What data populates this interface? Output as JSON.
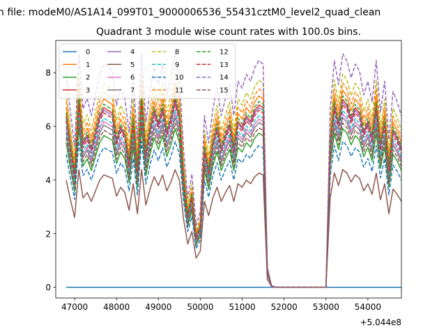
{
  "chart_data": {
    "type": "line",
    "suptitle": "n file: modeM0/AS1A14_099T01_9000006536_55431cztM0_level2_quad_clean",
    "title": "Quadrant 3 module wise count rates with 100.0s bins.",
    "xlabel": "",
    "ylabel": "",
    "x_offset_label": "+5.044e8",
    "xlim": [
      46550,
      54800
    ],
    "ylim": [
      -0.4,
      9.2
    ],
    "x_ticks": [
      47000,
      48000,
      49000,
      50000,
      51000,
      52000,
      53000,
      54000
    ],
    "x_tick_labels": [
      "47000",
      "48000",
      "49000",
      "50000",
      "51000",
      "52000",
      "53000",
      "54000"
    ],
    "y_ticks": [
      0,
      2,
      4,
      6,
      8
    ],
    "y_tick_labels": [
      "0",
      "2",
      "4",
      "6",
      "8"
    ],
    "grid": false,
    "legend_position": "upper-left",
    "legend_columns": 4,
    "x_start": 46800,
    "x_step": 100,
    "base_profile": [
      6.2,
      5.1,
      4.1,
      6.8,
      5.2,
      5.5,
      5.0,
      5.6,
      6.2,
      6.5,
      6.4,
      6.3,
      5.3,
      5.8,
      5.5,
      4.5,
      6.0,
      4.3,
      6.8,
      4.8,
      5.7,
      6.4,
      5.9,
      6.5,
      5.6,
      6.1,
      6.8,
      6.2,
      4.0,
      2.6,
      3.3,
      1.8,
      2.2,
      5.0,
      4.2,
      5.2,
      5.8,
      5.0,
      5.5,
      5.9,
      5.0,
      6.0,
      5.8,
      6.2,
      6.0,
      6.4,
      6.6,
      6.5,
      0.6,
      0.05,
      0.0,
      0.0,
      0.0,
      0.0,
      0.0,
      0.0,
      0.0,
      0.0,
      0.0,
      0.0,
      0.0,
      0.0,
      0.0,
      5.2,
      6.6,
      5.9,
      6.8,
      6.6,
      6.1,
      6.5,
      6.3,
      5.6,
      6.0,
      5.4,
      6.6,
      5.1,
      6.0,
      4.3,
      5.7,
      5.4,
      5.0,
      4.6,
      5.5,
      5.2,
      0.5
    ],
    "series": [
      {
        "name": "0",
        "color": "#1f77b4",
        "dashed": false,
        "scale": 0.0,
        "shift": 0.0
      },
      {
        "name": "1",
        "color": "#ff7f0e",
        "dashed": false,
        "scale": 1.08,
        "shift": 0.0
      },
      {
        "name": "2",
        "color": "#2ca02c",
        "dashed": false,
        "scale": 0.87,
        "shift": 0.0
      },
      {
        "name": "3",
        "color": "#d62728",
        "dashed": false,
        "scale": 1.03,
        "shift": 0.0
      },
      {
        "name": "4",
        "color": "#9467bd",
        "dashed": false,
        "scale": 1.0,
        "shift": 0.1
      },
      {
        "name": "5",
        "color": "#8c564b",
        "dashed": false,
        "scale": 0.66,
        "shift": -0.1
      },
      {
        "name": "6",
        "color": "#e377c2",
        "dashed": false,
        "scale": 0.95,
        "shift": 0.0
      },
      {
        "name": "7",
        "color": "#7f7f7f",
        "dashed": false,
        "scale": 0.93,
        "shift": 0.0
      },
      {
        "name": "8",
        "color": "#bcbd22",
        "dashed": true,
        "scale": 1.17,
        "shift": 0.0
      },
      {
        "name": "9",
        "color": "#17becf",
        "dashed": true,
        "scale": 0.97,
        "shift": 0.0
      },
      {
        "name": "10",
        "color": "#1f77b4",
        "dashed": true,
        "scale": 0.8,
        "shift": 0.0
      },
      {
        "name": "11",
        "color": "#ff7f0e",
        "dashed": true,
        "scale": 1.12,
        "shift": 0.0
      },
      {
        "name": "12",
        "color": "#2ca02c",
        "dashed": true,
        "scale": 1.05,
        "shift": 0.0
      },
      {
        "name": "13",
        "color": "#d62728",
        "dashed": true,
        "scale": 1.0,
        "shift": 0.0
      },
      {
        "name": "14",
        "color": "#9467bd",
        "dashed": true,
        "scale": 1.28,
        "shift": 0.0
      },
      {
        "name": "15",
        "color": "#8c564b",
        "dashed": true,
        "scale": 0.9,
        "shift": 0.0
      }
    ]
  }
}
